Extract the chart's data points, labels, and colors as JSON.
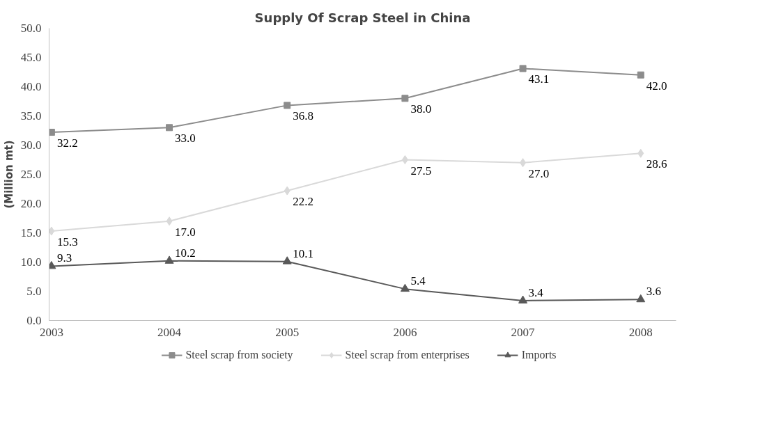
{
  "chart_data": {
    "type": "line",
    "title": "Supply Of Scrap Steel in China",
    "ylabel": "(Million mt)",
    "categories": [
      "2003",
      "2004",
      "2005",
      "2006",
      "2007",
      "2008"
    ],
    "series": [
      {
        "name": "Steel scrap from society",
        "color": "#8c8c8c",
        "marker": "square",
        "values": [
          32.2,
          33,
          36.8,
          38,
          43.1,
          42
        ],
        "value_labels": [
          "32.2",
          "33.0",
          "36.8",
          "38.0",
          "43.1",
          "42.0"
        ]
      },
      {
        "name": "Steel scrap from enterprises",
        "color": "#d9d9d9",
        "marker": "diamond",
        "values": [
          15.3,
          17,
          22.2,
          27.5,
          27,
          28.6
        ],
        "value_labels": [
          "15.3",
          "17.0",
          "22.2",
          "27.5",
          "27.0",
          "28.6"
        ]
      },
      {
        "name": "Imports",
        "color": "#595959",
        "marker": "triangle",
        "values": [
          9.3,
          10.2,
          10.1,
          5.4,
          3.4,
          3.6
        ],
        "value_labels": [
          "9.3",
          "10.2",
          "10.1",
          "5.4",
          "3.4",
          "3.6"
        ]
      }
    ],
    "ylim": [
      0,
      50
    ],
    "yticks": [
      {
        "value": 0,
        "label": "0.0"
      },
      {
        "value": 5,
        "label": "5.0"
      },
      {
        "value": 10,
        "label": "10.0"
      },
      {
        "value": 15,
        "label": "15.0"
      },
      {
        "value": 20,
        "label": "20.0"
      },
      {
        "value": 25,
        "label": "25.0"
      },
      {
        "value": 30,
        "label": "30.0"
      },
      {
        "value": 35,
        "label": "35.0"
      },
      {
        "value": 40,
        "label": "40.0"
      },
      {
        "value": 45,
        "label": "45.0"
      },
      {
        "value": 50,
        "label": "50.0"
      }
    ],
    "grid": false,
    "legend": "bottom",
    "line_style": "solid"
  }
}
